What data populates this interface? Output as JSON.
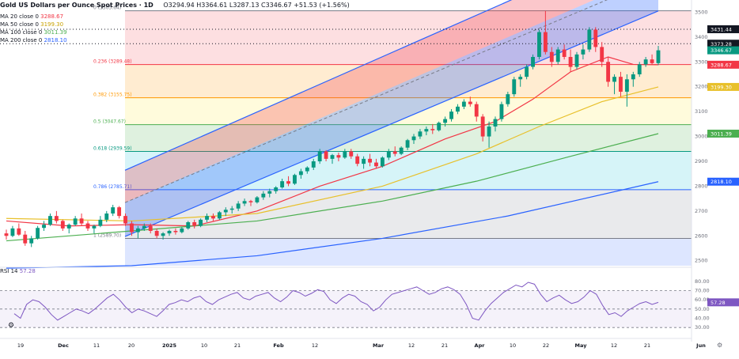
{
  "header": {
    "title": "Gold US Dollars per Ounce Spot Prices · 1D",
    "ohlc": "O3294.94 H3364.61 L3287.13 C3346.67 +51.53 (+1.56%)"
  },
  "ma_legend": [
    {
      "label": "MA 20 close 0",
      "value": "3288.67",
      "color": "#f23645"
    },
    {
      "label": "MA 50 close 0",
      "value": "3199.30",
      "color": "#e8c02a"
    },
    {
      "label": "MA 100 close 0",
      "value": "3011.39",
      "color": "#4caf50"
    },
    {
      "label": "MA 200 close 0",
      "value": "2818.10",
      "color": "#2962ff"
    }
  ],
  "rsi_legend": {
    "label": "RSI 14",
    "value": "57.28"
  },
  "chart_data": [
    {
      "type": "candlestick",
      "title": "Gold US Dollars per Ounce Spot Prices · 1D",
      "x_tick_labels": [
        "19",
        "Dec",
        "11",
        "20",
        "2025",
        "10",
        "21",
        "Feb",
        "12",
        "Mar",
        "12",
        "21",
        "Apr",
        "10",
        "22",
        "May",
        "12",
        "21",
        "Jun"
      ],
      "y_ticks": [
        2500,
        2600,
        2700,
        2800,
        2900,
        3000,
        3100,
        3200,
        3300,
        3400,
        3500
      ],
      "y_range": [
        2480,
        3530
      ],
      "fib_levels": [
        {
          "label": "0 (3505.64)",
          "value": 3505.64
        },
        {
          "label": "0.236 (3289.48)",
          "value": 3289.48
        },
        {
          "label": "0.382 (3155.75)",
          "value": 3155.75
        },
        {
          "label": "0.5 (3047.67)",
          "value": 3047.67
        },
        {
          "label": "0.618 (2939.59)",
          "value": 2939.59
        },
        {
          "label": "0.786 (2785.71)",
          "value": 2785.71
        },
        {
          "label": "1 (2589.70)",
          "value": 2589.7
        }
      ],
      "price_badges": [
        {
          "value": "3431.44",
          "color": "#131722"
        },
        {
          "value": "3373.28",
          "color": "#131722"
        },
        {
          "value": "3346.67",
          "color": "#089981"
        },
        {
          "value": "3288.67",
          "color": "#f23645"
        },
        {
          "value": "3199.30",
          "color": "#e8c02a"
        },
        {
          "value": "3011.39",
          "color": "#4caf50"
        },
        {
          "value": "2818.10",
          "color": "#2962ff"
        }
      ],
      "candles": [
        [
          2610,
          2625,
          2585,
          2600
        ],
        [
          2600,
          2640,
          2595,
          2630
        ],
        [
          2630,
          2650,
          2600,
          2605
        ],
        [
          2605,
          2620,
          2560,
          2570
        ],
        [
          2570,
          2600,
          2555,
          2590
        ],
        [
          2590,
          2640,
          2585,
          2632
        ],
        [
          2632,
          2660,
          2620,
          2645
        ],
        [
          2645,
          2690,
          2640,
          2680
        ],
        [
          2680,
          2700,
          2650,
          2660
        ],
        [
          2660,
          2665,
          2620,
          2630
        ],
        [
          2630,
          2650,
          2610,
          2645
        ],
        [
          2645,
          2680,
          2640,
          2670
        ],
        [
          2670,
          2690,
          2640,
          2650
        ],
        [
          2650,
          2660,
          2620,
          2630
        ],
        [
          2630,
          2645,
          2610,
          2640
        ],
        [
          2640,
          2680,
          2635,
          2665
        ],
        [
          2665,
          2700,
          2655,
          2690
        ],
        [
          2690,
          2725,
          2680,
          2715
        ],
        [
          2715,
          2720,
          2670,
          2680
        ],
        [
          2680,
          2690,
          2640,
          2650
        ],
        [
          2650,
          2660,
          2600,
          2615
        ],
        [
          2615,
          2640,
          2590,
          2630
        ],
        [
          2630,
          2650,
          2620,
          2640
        ],
        [
          2640,
          2650,
          2610,
          2620
        ],
        [
          2620,
          2630,
          2590,
          2600
        ],
        [
          2600,
          2615,
          2585,
          2610
        ],
        [
          2610,
          2625,
          2600,
          2620
        ],
        [
          2620,
          2630,
          2605,
          2615
        ],
        [
          2615,
          2635,
          2610,
          2630
        ],
        [
          2630,
          2660,
          2625,
          2655
        ],
        [
          2655,
          2665,
          2630,
          2640
        ],
        [
          2640,
          2670,
          2635,
          2665
        ],
        [
          2665,
          2690,
          2655,
          2680
        ],
        [
          2680,
          2690,
          2660,
          2670
        ],
        [
          2670,
          2700,
          2665,
          2695
        ],
        [
          2695,
          2715,
          2680,
          2705
        ],
        [
          2705,
          2720,
          2690,
          2710
        ],
        [
          2710,
          2740,
          2700,
          2730
        ],
        [
          2730,
          2750,
          2720,
          2740
        ],
        [
          2740,
          2745,
          2720,
          2735
        ],
        [
          2735,
          2760,
          2730,
          2755
        ],
        [
          2755,
          2780,
          2745,
          2770
        ],
        [
          2770,
          2790,
          2755,
          2780
        ],
        [
          2780,
          2800,
          2770,
          2795
        ],
        [
          2795,
          2830,
          2790,
          2820
        ],
        [
          2820,
          2840,
          2800,
          2810
        ],
        [
          2810,
          2850,
          2805,
          2845
        ],
        [
          2845,
          2870,
          2830,
          2860
        ],
        [
          2860,
          2880,
          2850,
          2875
        ],
        [
          2875,
          2910,
          2865,
          2900
        ],
        [
          2900,
          2950,
          2890,
          2940
        ],
        [
          2940,
          2945,
          2900,
          2910
        ],
        [
          2910,
          2930,
          2890,
          2925
        ],
        [
          2925,
          2935,
          2900,
          2915
        ],
        [
          2915,
          2950,
          2910,
          2940
        ],
        [
          2940,
          2950,
          2910,
          2920
        ],
        [
          2920,
          2930,
          2880,
          2890
        ],
        [
          2890,
          2920,
          2870,
          2910
        ],
        [
          2910,
          2930,
          2880,
          2895
        ],
        [
          2895,
          2910,
          2870,
          2880
        ],
        [
          2880,
          2920,
          2875,
          2915
        ],
        [
          2915,
          2950,
          2905,
          2940
        ],
        [
          2940,
          2960,
          2920,
          2930
        ],
        [
          2930,
          2960,
          2925,
          2955
        ],
        [
          2955,
          2990,
          2945,
          2985
        ],
        [
          2985,
          3010,
          2970,
          3000
        ],
        [
          3000,
          3030,
          2990,
          3020
        ],
        [
          3020,
          3040,
          3005,
          3030
        ],
        [
          3030,
          3050,
          3010,
          3025
        ],
        [
          3025,
          3060,
          3020,
          3055
        ],
        [
          3055,
          3080,
          3040,
          3070
        ],
        [
          3070,
          3110,
          3060,
          3100
        ],
        [
          3100,
          3130,
          3090,
          3120
        ],
        [
          3120,
          3150,
          3110,
          3140
        ],
        [
          3140,
          3160,
          3120,
          3130
        ],
        [
          3130,
          3140,
          3060,
          3080
        ],
        [
          3080,
          3090,
          2980,
          3000
        ],
        [
          3000,
          3060,
          2955,
          3040
        ],
        [
          3040,
          3080,
          3020,
          3070
        ],
        [
          3070,
          3140,
          3060,
          3130
        ],
        [
          3130,
          3180,
          3120,
          3170
        ],
        [
          3170,
          3240,
          3160,
          3230
        ],
        [
          3230,
          3250,
          3200,
          3240
        ],
        [
          3240,
          3290,
          3230,
          3280
        ],
        [
          3280,
          3330,
          3270,
          3320
        ],
        [
          3320,
          3430,
          3310,
          3420
        ],
        [
          3420,
          3505,
          3330,
          3340
        ],
        [
          3340,
          3360,
          3280,
          3300
        ],
        [
          3300,
          3360,
          3290,
          3350
        ],
        [
          3350,
          3370,
          3310,
          3320
        ],
        [
          3320,
          3350,
          3260,
          3280
        ],
        [
          3280,
          3340,
          3270,
          3330
        ],
        [
          3330,
          3370,
          3310,
          3350
        ],
        [
          3350,
          3440,
          3340,
          3430
        ],
        [
          3430,
          3440,
          3340,
          3360
        ],
        [
          3360,
          3380,
          3280,
          3300
        ],
        [
          3300,
          3320,
          3200,
          3220
        ],
        [
          3220,
          3250,
          3170,
          3240
        ],
        [
          3240,
          3260,
          3160,
          3180
        ],
        [
          3180,
          3250,
          3120,
          3230
        ],
        [
          3230,
          3260,
          3200,
          3250
        ],
        [
          3250,
          3300,
          3240,
          3290
        ],
        [
          3290,
          3320,
          3280,
          3310
        ],
        [
          3310,
          3330,
          3290,
          3295
        ],
        [
          3295,
          3364.61,
          3287.13,
          3346.67
        ]
      ],
      "moving_averages": [
        {
          "name": "MA 20",
          "color": "#f23645",
          "points": [
            [
              0,
              2660
            ],
            [
              10,
              2640
            ],
            [
              20,
              2645
            ],
            [
              30,
              2640
            ],
            [
              40,
              2700
            ],
            [
              50,
              2800
            ],
            [
              60,
              2880
            ],
            [
              70,
              2990
            ],
            [
              78,
              3060
            ],
            [
              84,
              3150
            ],
            [
              90,
              3260
            ],
            [
              96,
              3320
            ],
            [
              100,
              3290
            ],
            [
              104,
              3288.67
            ]
          ]
        },
        {
          "name": "MA 50",
          "color": "#e8c02a",
          "points": [
            [
              0,
              2670
            ],
            [
              20,
              2660
            ],
            [
              40,
              2690
            ],
            [
              60,
              2800
            ],
            [
              75,
              2930
            ],
            [
              85,
              3040
            ],
            [
              95,
              3140
            ],
            [
              104,
              3199.3
            ]
          ]
        },
        {
          "name": "MA 100",
          "color": "#4caf50",
          "points": [
            [
              0,
              2580
            ],
            [
              20,
              2620
            ],
            [
              40,
              2660
            ],
            [
              60,
              2740
            ],
            [
              75,
              2820
            ],
            [
              90,
              2920
            ],
            [
              104,
              3011.39
            ]
          ]
        },
        {
          "name": "MA 200",
          "color": "#2962ff",
          "points": [
            [
              0,
              2470
            ],
            [
              20,
              2480
            ],
            [
              40,
              2520
            ],
            [
              60,
              2590
            ],
            [
              80,
              2680
            ],
            [
              104,
              2818.1
            ]
          ]
        }
      ]
    },
    {
      "type": "line",
      "title": "RSI 14",
      "y_ticks": [
        30,
        40,
        50,
        60,
        70,
        80
      ],
      "y_range": [
        25,
        85
      ],
      "series": [
        {
          "name": "RSI 14",
          "color": "#7e57c2",
          "values": [
            45,
            40,
            55,
            60,
            58,
            52,
            44,
            38,
            42,
            46,
            50,
            48,
            45,
            50,
            56,
            62,
            66,
            60,
            52,
            46,
            50,
            48,
            45,
            42,
            48,
            55,
            57,
            60,
            58,
            62,
            64,
            58,
            55,
            60,
            63,
            66,
            68,
            62,
            60,
            64,
            66,
            68,
            62,
            58,
            63,
            70,
            68,
            64,
            67,
            71,
            69,
            60,
            56,
            62,
            66,
            64,
            58,
            55,
            48,
            52,
            60,
            66,
            68,
            70,
            72,
            74,
            70,
            66,
            68,
            72,
            74,
            71,
            66,
            55,
            40,
            38,
            48,
            56,
            62,
            68,
            72,
            76,
            74,
            79,
            77,
            66,
            58,
            62,
            65,
            60,
            56,
            58,
            63,
            70,
            66,
            54,
            44,
            46,
            42,
            48,
            52,
            56,
            58,
            55,
            57.28
          ]
        }
      ],
      "value_label": "57.28"
    }
  ]
}
